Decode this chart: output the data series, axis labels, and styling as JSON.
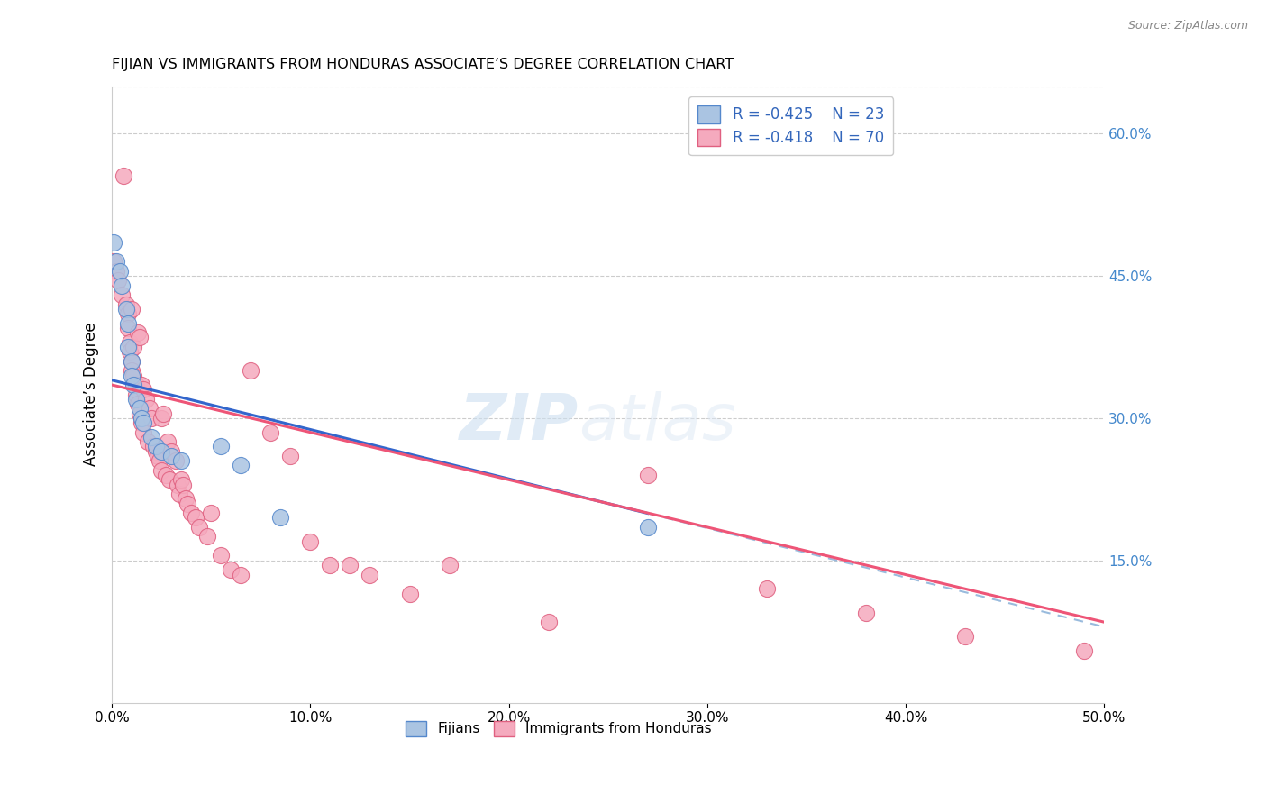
{
  "title": "FIJIAN VS IMMIGRANTS FROM HONDURAS ASSOCIATE’S DEGREE CORRELATION CHART",
  "source": "Source: ZipAtlas.com",
  "ylabel": "Associate’s Degree",
  "xlim": [
    0.0,
    0.5
  ],
  "ylim": [
    0.0,
    0.65
  ],
  "xticks": [
    0.0,
    0.1,
    0.2,
    0.3,
    0.4,
    0.5
  ],
  "xticklabels": [
    "0.0%",
    "10.0%",
    "20.0%",
    "30.0%",
    "40.0%",
    "50.0%"
  ],
  "right_yticks": [
    0.15,
    0.3,
    0.45,
    0.6
  ],
  "right_yticklabels": [
    "15.0%",
    "30.0%",
    "45.0%",
    "60.0%"
  ],
  "fijian_color": "#aac4e2",
  "honduras_color": "#f5aabe",
  "fijian_edge": "#5588cc",
  "honduras_edge": "#e06080",
  "line_blue": "#3366cc",
  "line_pink": "#ee5577",
  "line_dashed": "#99bbdd",
  "watermark_zip": "ZIP",
  "watermark_atlas": "atlas",
  "legend_r1": "R = -0.425",
  "legend_n1": "N = 23",
  "legend_r2": "R = -0.418",
  "legend_n2": "N = 70",
  "fijian_x": [
    0.001,
    0.002,
    0.004,
    0.005,
    0.007,
    0.008,
    0.008,
    0.01,
    0.01,
    0.011,
    0.012,
    0.014,
    0.015,
    0.016,
    0.02,
    0.022,
    0.025,
    0.03,
    0.035,
    0.055,
    0.065,
    0.085,
    0.27
  ],
  "fijian_y": [
    0.485,
    0.465,
    0.455,
    0.44,
    0.415,
    0.4,
    0.375,
    0.36,
    0.345,
    0.335,
    0.32,
    0.31,
    0.3,
    0.295,
    0.28,
    0.27,
    0.265,
    0.26,
    0.255,
    0.27,
    0.25,
    0.195,
    0.185
  ],
  "honduras_x": [
    0.001,
    0.002,
    0.003,
    0.005,
    0.006,
    0.007,
    0.008,
    0.008,
    0.009,
    0.009,
    0.01,
    0.01,
    0.01,
    0.011,
    0.011,
    0.012,
    0.012,
    0.013,
    0.013,
    0.014,
    0.014,
    0.015,
    0.015,
    0.016,
    0.016,
    0.017,
    0.018,
    0.019,
    0.02,
    0.021,
    0.022,
    0.023,
    0.024,
    0.025,
    0.025,
    0.026,
    0.027,
    0.028,
    0.029,
    0.03,
    0.032,
    0.033,
    0.034,
    0.035,
    0.036,
    0.037,
    0.038,
    0.04,
    0.042,
    0.044,
    0.048,
    0.05,
    0.055,
    0.06,
    0.065,
    0.07,
    0.08,
    0.09,
    0.1,
    0.11,
    0.12,
    0.13,
    0.15,
    0.17,
    0.22,
    0.27,
    0.33,
    0.38,
    0.43,
    0.49
  ],
  "honduras_y": [
    0.465,
    0.455,
    0.445,
    0.43,
    0.555,
    0.42,
    0.41,
    0.395,
    0.38,
    0.37,
    0.36,
    0.415,
    0.35,
    0.345,
    0.375,
    0.335,
    0.325,
    0.315,
    0.39,
    0.305,
    0.385,
    0.295,
    0.335,
    0.285,
    0.33,
    0.32,
    0.275,
    0.31,
    0.3,
    0.27,
    0.265,
    0.26,
    0.255,
    0.3,
    0.245,
    0.305,
    0.24,
    0.275,
    0.235,
    0.265,
    0.255,
    0.23,
    0.22,
    0.235,
    0.23,
    0.215,
    0.21,
    0.2,
    0.195,
    0.185,
    0.175,
    0.2,
    0.155,
    0.14,
    0.135,
    0.35,
    0.285,
    0.26,
    0.17,
    0.145,
    0.145,
    0.135,
    0.115,
    0.145,
    0.085,
    0.24,
    0.12,
    0.095,
    0.07,
    0.055
  ],
  "fijian_line_x": [
    0.0,
    0.27
  ],
  "fijian_line_y_intercept": 0.34,
  "fijian_line_slope": -0.52,
  "honduras_line_x": [
    0.0,
    0.5
  ],
  "honduras_line_y_intercept": 0.335,
  "honduras_line_slope": -0.5
}
